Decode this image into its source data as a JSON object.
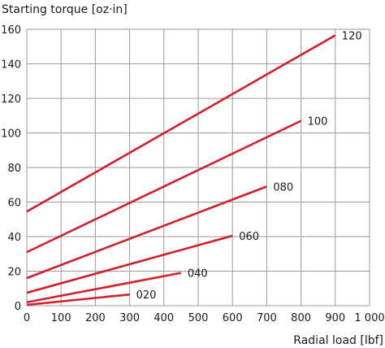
{
  "chart_data": {
    "type": "line",
    "title": "",
    "ylabel": "Starting torque [oz·in]",
    "xlabel": "Radial load [lbf]",
    "xlim": [
      0,
      1000
    ],
    "ylim": [
      0,
      160
    ],
    "xticks": [
      0,
      100,
      200,
      300,
      400,
      500,
      600,
      700,
      800,
      900,
      1000
    ],
    "xtick_labels": [
      "0",
      "100",
      "200",
      "300",
      "400",
      "500",
      "600",
      "700",
      "800",
      "900",
      "1 000"
    ],
    "yticks": [
      0,
      20,
      40,
      60,
      80,
      100,
      120,
      140,
      160
    ],
    "ytick_labels": [
      "0",
      "20",
      "40",
      "60",
      "80",
      "100",
      "120",
      "140",
      "160"
    ],
    "grid": true,
    "line_color": "#d0202a",
    "series": [
      {
        "name": "020",
        "x": [
          0,
          300
        ],
        "y": [
          0.5,
          6.5
        ]
      },
      {
        "name": "040",
        "x": [
          0,
          450
        ],
        "y": [
          2,
          19
        ]
      },
      {
        "name": "060",
        "x": [
          0,
          600
        ],
        "y": [
          7.5,
          40.5
        ]
      },
      {
        "name": "080",
        "x": [
          0,
          700
        ],
        "y": [
          16,
          69
        ]
      },
      {
        "name": "100",
        "x": [
          0,
          800
        ],
        "y": [
          31,
          107
        ]
      },
      {
        "name": "120",
        "x": [
          0,
          900
        ],
        "y": [
          54.5,
          156.5
        ]
      }
    ]
  }
}
